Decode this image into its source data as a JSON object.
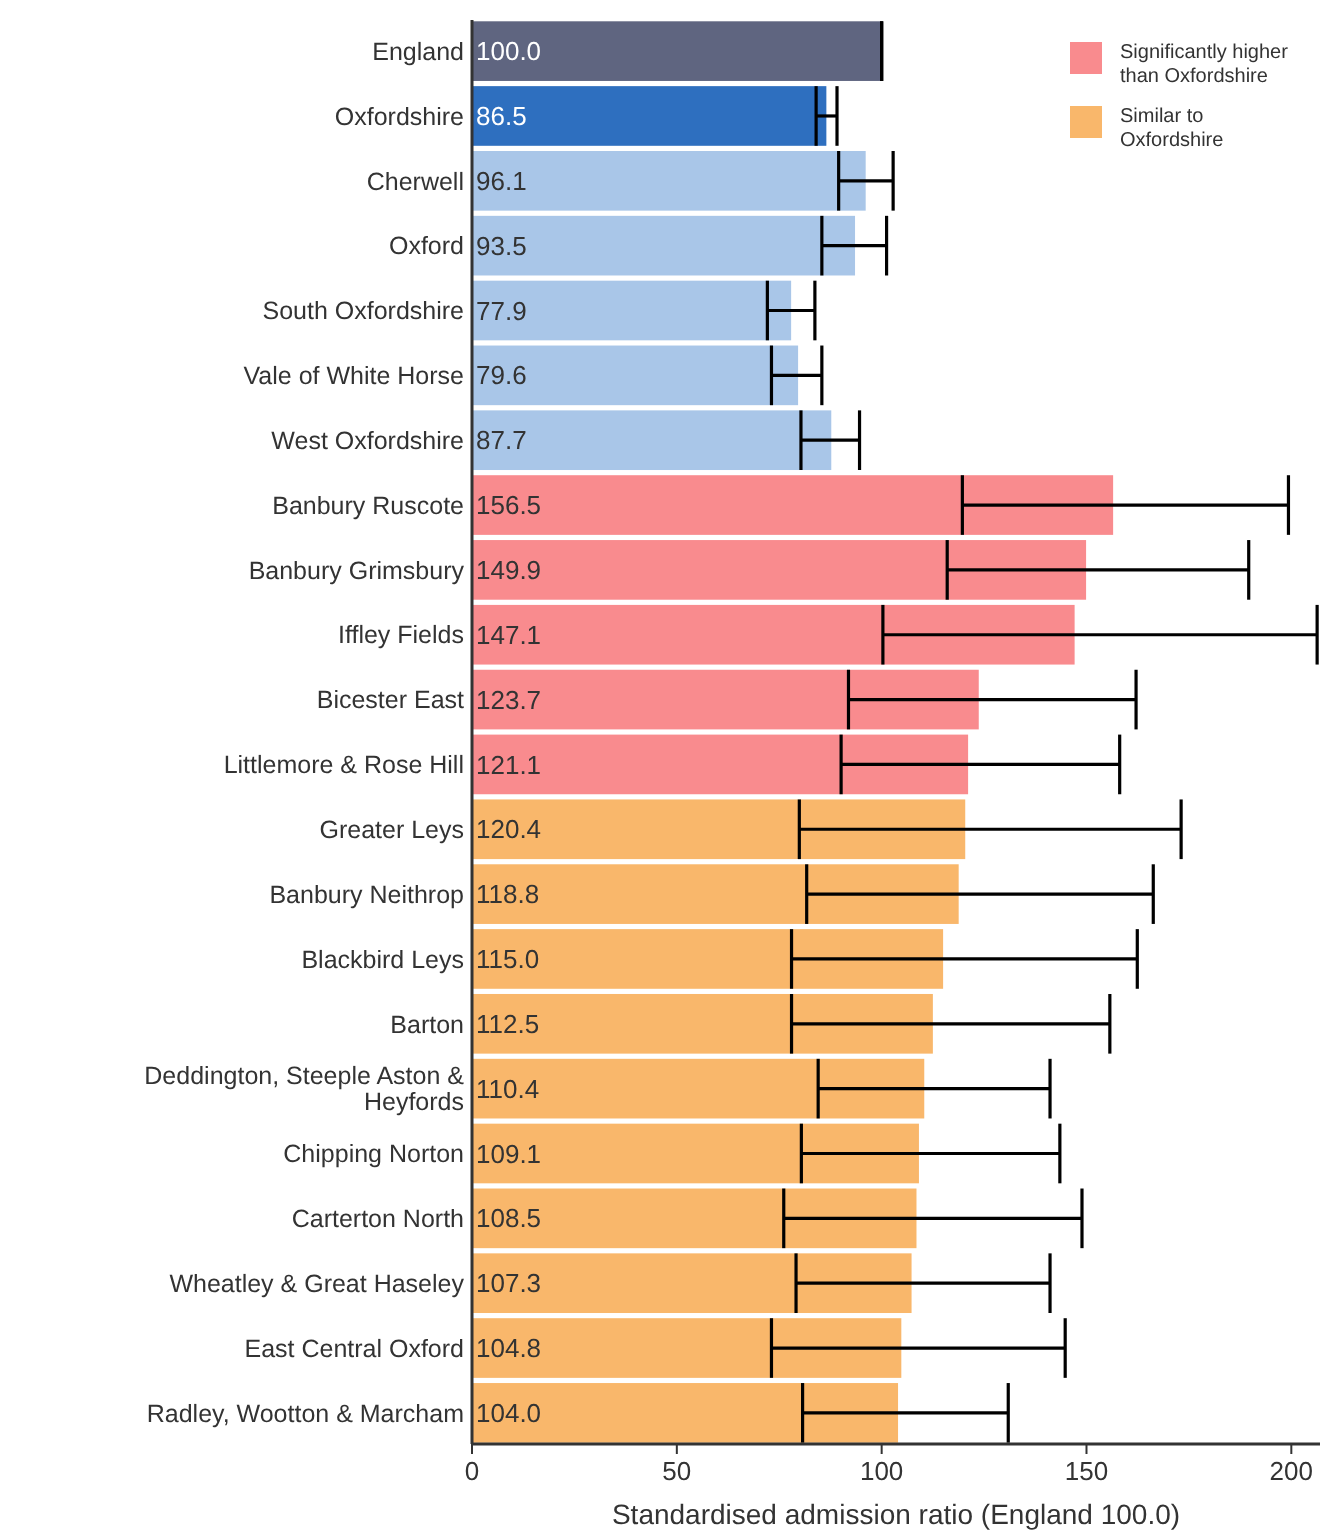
{
  "chart_data": {
    "type": "bar",
    "orientation": "horizontal",
    "legend": "top right",
    "grid": false,
    "xlabel": "Standardised admission ratio (England 100.0)",
    "categories": [
      "England",
      "Oxfordshire",
      "Cherwell",
      "Oxford",
      "South Oxfordshire",
      "Vale of White Horse",
      "West Oxfordshire",
      "Banbury Ruscote",
      "Banbury Grimsbury",
      "Iffley Fields",
      "Bicester East",
      "Littlemore & Rose Hill",
      "Greater Leys",
      "Banbury Neithrop",
      "Blackbird Leys",
      "Barton",
      "Deddington, Steeple Aston & Heyfords",
      "Chipping Norton",
      "Carterton North",
      "Wheatley & Great Haseley",
      "East Central Oxford",
      "Radley, Wootton & Marcham"
    ],
    "xlim": [
      0,
      207
    ],
    "xticks": [
      0,
      50,
      100,
      150,
      200
    ],
    "series": [
      {
        "color": "#5f6580",
        "values": [
          100.0,
          null,
          null,
          null,
          null,
          null,
          null,
          null,
          null,
          null,
          null,
          null,
          null,
          null,
          null,
          null,
          null,
          null,
          null,
          null,
          null,
          null
        ],
        "value_labels": [
          "100.0",
          null,
          null,
          null,
          null,
          null,
          null,
          null,
          null,
          null,
          null,
          null,
          null,
          null,
          null,
          null,
          null,
          null,
          null,
          null,
          null,
          null
        ],
        "errors": [
          [
            100,
            100
          ],
          null,
          null,
          null,
          null,
          null,
          null,
          null,
          null,
          null,
          null,
          null,
          null,
          null,
          null,
          null,
          null,
          null,
          null,
          null,
          null,
          null
        ]
      },
      {
        "color": "#2e6fbf",
        "values": [
          null,
          86.5,
          null,
          null,
          null,
          null,
          null,
          null,
          null,
          null,
          null,
          null,
          null,
          null,
          null,
          null,
          null,
          null,
          null,
          null,
          null,
          null
        ],
        "value_labels": [
          null,
          "86.5",
          null,
          null,
          null,
          null,
          null,
          null,
          null,
          null,
          null,
          null,
          null,
          null,
          null,
          null,
          null,
          null,
          null,
          null,
          null,
          null
        ],
        "errors": [
          null,
          [
            84.0,
            89.1
          ],
          null,
          null,
          null,
          null,
          null,
          null,
          null,
          null,
          null,
          null,
          null,
          null,
          null,
          null,
          null,
          null,
          null,
          null,
          null,
          null
        ]
      },
      {
        "color": "#a9c6e8",
        "values": [
          null,
          null,
          96.1,
          93.5,
          77.9,
          79.6,
          87.7,
          null,
          null,
          null,
          null,
          null,
          null,
          null,
          null,
          null,
          null,
          null,
          null,
          null,
          null,
          null
        ],
        "value_labels": [
          null,
          null,
          "96.1",
          "93.5",
          "77.9",
          "79.6",
          "87.7",
          null,
          null,
          null,
          null,
          null,
          null,
          null,
          null,
          null,
          null,
          null,
          null,
          null,
          null,
          null
        ],
        "errors": [
          null,
          null,
          [
            89.5,
            102.8
          ],
          [
            85.4,
            101.2
          ],
          [
            72.1,
            83.7
          ],
          [
            73.1,
            85.4
          ],
          [
            80.3,
            94.6
          ],
          null,
          null,
          null,
          null,
          null,
          null,
          null,
          null,
          null,
          null,
          null,
          null,
          null,
          null,
          null
        ]
      },
      {
        "name": "Significantly higher than Oxfordshire",
        "color": "#f98b8e",
        "values": [
          null,
          null,
          null,
          null,
          null,
          null,
          null,
          156.5,
          149.9,
          147.1,
          123.7,
          121.1,
          null,
          null,
          null,
          null,
          null,
          null,
          null,
          null,
          null,
          null
        ],
        "value_labels": [
          null,
          null,
          null,
          null,
          null,
          null,
          null,
          "156.5",
          "149.9",
          "147.1",
          "123.7",
          "121.1",
          null,
          null,
          null,
          null,
          null,
          null,
          null,
          null,
          null,
          null
        ],
        "errors": [
          null,
          null,
          null,
          null,
          null,
          null,
          null,
          [
            119.7,
            199.3
          ],
          [
            116.0,
            189.6
          ],
          [
            100.3,
            206.3
          ],
          [
            91.9,
            162.1
          ],
          [
            90.1,
            158.1
          ],
          null,
          null,
          null,
          null,
          null,
          null,
          null,
          null,
          null,
          null
        ]
      },
      {
        "name": "Similar to Oxfordshire",
        "color": "#f9b76b",
        "values": [
          null,
          null,
          null,
          null,
          null,
          null,
          null,
          null,
          null,
          null,
          null,
          null,
          120.4,
          118.8,
          115.0,
          112.5,
          110.4,
          109.1,
          108.5,
          107.3,
          104.8,
          104.0
        ],
        "value_labels": [
          null,
          null,
          null,
          null,
          null,
          null,
          null,
          null,
          null,
          null,
          null,
          null,
          "120.4",
          "118.8",
          "115.0",
          "112.5",
          "110.4",
          "109.1",
          "108.5",
          "107.3",
          "104.8",
          "104.0"
        ],
        "errors": [
          null,
          null,
          null,
          null,
          null,
          null,
          null,
          null,
          null,
          null,
          null,
          null,
          [
            79.9,
            173.1
          ],
          [
            81.7,
            166.3
          ],
          [
            78.0,
            162.4
          ],
          [
            78.0,
            155.7
          ],
          [
            84.5,
            141.1
          ],
          [
            80.4,
            143.5
          ],
          [
            76.1,
            148.9
          ],
          [
            79.1,
            141.1
          ],
          [
            73.1,
            144.8
          ],
          [
            80.7,
            130.9
          ]
        ]
      }
    ]
  }
}
